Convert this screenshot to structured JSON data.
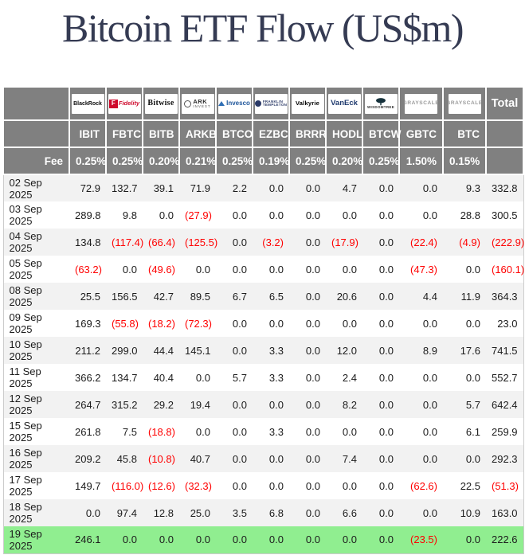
{
  "colors": {
    "header_bg": "#808080",
    "negative": "#ff0000",
    "highlight_row": "#90ee90",
    "alt_row": "#f2f2f2",
    "title_color": "#353b53"
  },
  "chart_data": {
    "type": "table",
    "title": "Bitcoin ETF Flow (US$m)",
    "fee_label": "Fee",
    "total_label": "Total",
    "providers": [
      {
        "name": "BlackRock",
        "logo": "blackrock",
        "ticker": "IBIT",
        "fee": "0.25%"
      },
      {
        "name": "Fidelity",
        "logo": "fidelity",
        "icon_letter": "F",
        "ticker": "FBTC",
        "fee": "0.25%"
      },
      {
        "name": "Bitwise",
        "logo": "bitwise",
        "ticker": "BITB",
        "fee": "0.20%"
      },
      {
        "name": "ARK Invest",
        "logo": "ark",
        "ticker": "ARKB",
        "fee": "0.21%"
      },
      {
        "name": "Invesco",
        "logo": "invesco",
        "ticker": "BTCO",
        "fee": "0.25%"
      },
      {
        "name": "Franklin Templeton",
        "logo": "franklin",
        "ticker": "EZBC",
        "fee": "0.19%"
      },
      {
        "name": "Valkyrie",
        "logo": "valkyrie",
        "ticker": "BRRR",
        "fee": "0.25%"
      },
      {
        "name": "VanEck",
        "logo": "vaneck",
        "ticker": "HODL",
        "fee": "0.20%"
      },
      {
        "name": "WisdomTree",
        "logo": "wisdomtree",
        "ticker": "BTCW",
        "fee": "0.25%"
      },
      {
        "name": "Grayscale",
        "logo": "grayscale",
        "ticker": "GBTC",
        "fee": "1.50%"
      },
      {
        "name": "Grayscale",
        "logo": "grayscale",
        "ticker": "BTC",
        "fee": "0.15%"
      }
    ],
    "rows": [
      {
        "date": "02 Sep 2025",
        "values": [
          72.9,
          132.7,
          39.1,
          71.9,
          2.2,
          0,
          0,
          4.7,
          0,
          0,
          9.3
        ],
        "total": 332.8,
        "highlight": false
      },
      {
        "date": "03 Sep 2025",
        "values": [
          289.8,
          9.8,
          0,
          -27.9,
          0,
          0,
          0,
          0,
          0,
          0,
          28.8
        ],
        "total": 300.5,
        "highlight": false
      },
      {
        "date": "04 Sep 2025",
        "values": [
          134.8,
          -117.4,
          -66.4,
          -125.5,
          0,
          -3.2,
          0,
          -17.9,
          0,
          -22.4,
          -4.9
        ],
        "total": -222.9,
        "highlight": false
      },
      {
        "date": "05 Sep 2025",
        "values": [
          -63.2,
          0,
          -49.6,
          0,
          0,
          0,
          0,
          0,
          0,
          -47.3,
          0
        ],
        "total": -160.1,
        "highlight": false
      },
      {
        "date": "08 Sep 2025",
        "values": [
          25.5,
          156.5,
          42.7,
          89.5,
          6.7,
          6.5,
          0,
          20.6,
          0,
          4.4,
          11.9
        ],
        "total": 364.3,
        "highlight": false
      },
      {
        "date": "09 Sep 2025",
        "values": [
          169.3,
          -55.8,
          -18.2,
          -72.3,
          0,
          0,
          0,
          0,
          0,
          0,
          0
        ],
        "total": 23.0,
        "highlight": false
      },
      {
        "date": "10 Sep 2025",
        "values": [
          211.2,
          299.0,
          44.4,
          145.1,
          0,
          3.3,
          0,
          12.0,
          0,
          8.9,
          17.6
        ],
        "total": 741.5,
        "highlight": false
      },
      {
        "date": "11 Sep 2025",
        "values": [
          366.2,
          134.7,
          40.4,
          0,
          5.7,
          3.3,
          0,
          2.4,
          0,
          0,
          0
        ],
        "total": 552.7,
        "highlight": false
      },
      {
        "date": "12 Sep 2025",
        "values": [
          264.7,
          315.2,
          29.2,
          19.4,
          0,
          0,
          0,
          8.2,
          0,
          0,
          5.7
        ],
        "total": 642.4,
        "highlight": false
      },
      {
        "date": "15 Sep 2025",
        "values": [
          261.8,
          7.5,
          -18.8,
          0,
          0,
          3.3,
          0,
          0,
          0,
          0,
          6.1
        ],
        "total": 259.9,
        "highlight": false
      },
      {
        "date": "16 Sep 2025",
        "values": [
          209.2,
          45.8,
          -10.8,
          40.7,
          0,
          0,
          0,
          7.4,
          0,
          0,
          0
        ],
        "total": 292.3,
        "highlight": false
      },
      {
        "date": "17 Sep 2025",
        "values": [
          149.7,
          -116.0,
          -12.6,
          -32.3,
          0,
          0,
          0,
          0,
          0,
          -62.6,
          22.5
        ],
        "total": -51.3,
        "highlight": false
      },
      {
        "date": "18 Sep 2025",
        "values": [
          0,
          97.4,
          12.8,
          25.0,
          3.5,
          6.8,
          0,
          6.6,
          0,
          0,
          10.9
        ],
        "total": 163.0,
        "highlight": false
      },
      {
        "date": "19 Sep 2025",
        "values": [
          246.1,
          0,
          0,
          0,
          0,
          0,
          0,
          0,
          0,
          -23.5,
          0
        ],
        "total": 222.6,
        "highlight": true
      }
    ]
  }
}
